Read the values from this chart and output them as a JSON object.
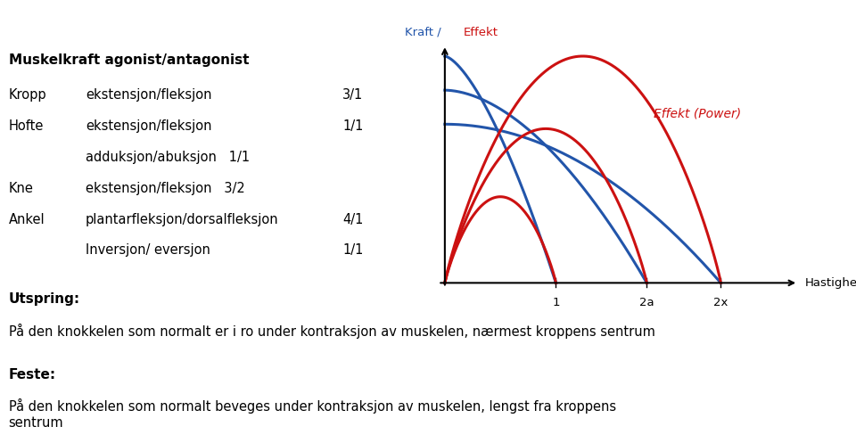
{
  "title_left": "Muskelkraft agonist/antagonist",
  "table_rows": [
    {
      "col1": "Kropp",
      "col2": "ekstensjon/fleksjon",
      "col3": "3/1"
    },
    {
      "col1": "Hofte",
      "col2": "ekstensjon/fleksjon",
      "col3": "1/1"
    },
    {
      "col1": "",
      "col2": "adduksjon/abuksjon   1/1",
      "col3": ""
    },
    {
      "col1": "Kne",
      "col2": "ekstensjon/fleksjon   3/2",
      "col3": ""
    },
    {
      "col1": "Ankel",
      "col2": "plantarfleksjon/dorsalfleksjon",
      "col3": "4/1"
    },
    {
      "col1": "",
      "col2": "Inversjon/ eversjon",
      "col3": "1/1"
    }
  ],
  "utspring_label": "Utspring:",
  "utspring_text": "På den knokkelen som normalt er i ro under kontraksjon av muskelen, nærmest kroppens sentrum",
  "feste_label": "Feste:",
  "feste_text": "På den knokkelen som normalt beveges under kontraksjon av muskelen, lengst fra kroppens\nsentrum",
  "graph_title_blue": "Kraft / ",
  "graph_title_red": "Effekt",
  "ylabel_label": "Kraft / Effekt",
  "xlabel_label": "Hastighed",
  "x_ticks": [
    "1",
    "2a",
    "2x"
  ],
  "effekt_label": "Effekt (Power)",
  "blue_color": "#2255aa",
  "red_color": "#cc1111",
  "bg_color": "#ffffff",
  "text_color": "#000000"
}
